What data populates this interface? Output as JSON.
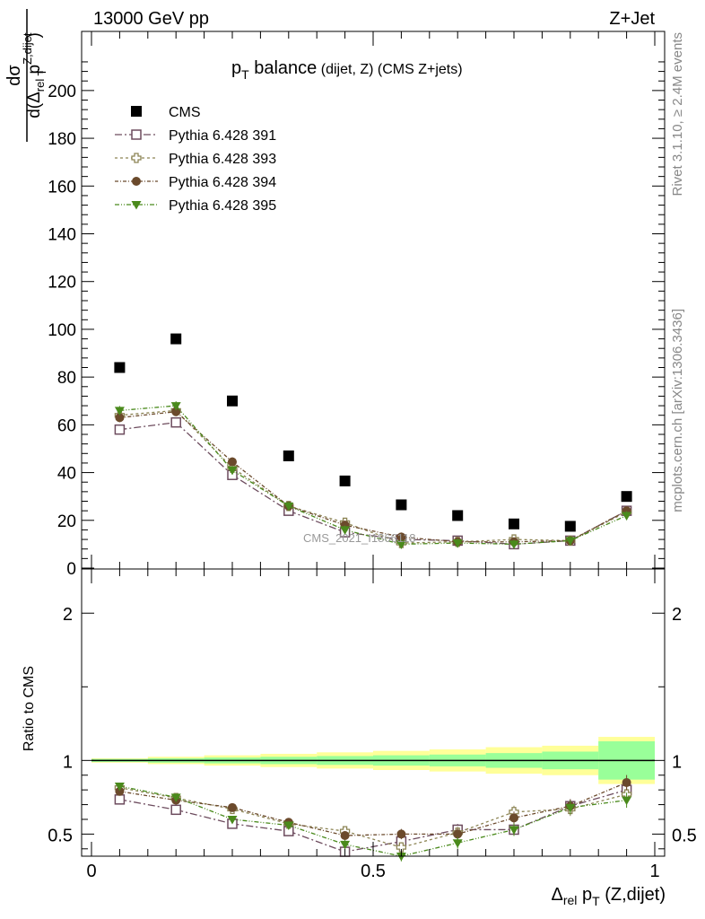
{
  "header": {
    "left": "13000 GeV pp",
    "right": "Z+Jet"
  },
  "side_labels": {
    "rivet": "Rivet 3.1.10, ≥ 2.4M events",
    "mcplots": "mcplots.cern.ch [arXiv:1306.3436]"
  },
  "watermark": "CMS_2021_I1866118",
  "colors": {
    "cms": "#000000",
    "p391": "#6d4c5e",
    "p393": "#8c8454",
    "p394": "#6b4a2c",
    "p395": "#4a8a1c",
    "band_inner": "#99ff99",
    "band_outer": "#ffff99"
  },
  "chart_data": [
    {
      "type": "scatter",
      "title": "p_T balance (dijet, Z) (CMS Z+jets)",
      "title_parts": {
        "main": "p",
        "sub": "T",
        "rest": " balance",
        "small": " (dijet, Z) (CMS Z+jets)"
      },
      "ylabel_parts": {
        "num": "dσ",
        "den_a": "d(Δ",
        "den_sub": "rel",
        "den_b": " p",
        "den_sup": "Z,dijet",
        "den_sub2": "T",
        "den_c": ")"
      },
      "xlim": [
        0,
        1
      ],
      "ylim": [
        0,
        215
      ],
      "y_ticks": [
        0,
        20,
        40,
        60,
        80,
        100,
        120,
        140,
        160,
        180,
        200
      ],
      "y_tick_labels": [
        "0",
        "20",
        "40",
        "60",
        "80",
        "100",
        "120",
        "140",
        "160",
        "180",
        "200"
      ],
      "x": [
        0.05,
        0.15,
        0.25,
        0.35,
        0.45,
        0.55,
        0.65,
        0.75,
        0.85,
        0.95
      ],
      "series": [
        {
          "name": "CMS",
          "key": "cms",
          "marker": "square-filled",
          "values": [
            84,
            96,
            70,
            47,
            36.5,
            26.5,
            22,
            18.5,
            17.5,
            30
          ]
        },
        {
          "name": "Pythia 6.428 391",
          "key": "p391",
          "marker": "square-open",
          "dash": "8,3,2,3",
          "values": [
            58,
            61,
            39,
            24,
            15,
            12,
            11.5,
            10,
            11.5,
            24
          ]
        },
        {
          "name": "Pythia 6.428 393",
          "key": "p393",
          "marker": "cross-open",
          "dash": "3,3",
          "values": [
            64,
            66,
            42,
            26,
            19,
            10.5,
            11,
            12,
            11.5,
            23.5
          ]
        },
        {
          "name": "Pythia 6.428 394",
          "key": "p394",
          "marker": "circle-filled",
          "dash": "4,2,1,2",
          "values": [
            63,
            65.5,
            44.5,
            26,
            18,
            13,
            11,
            11,
            11.5,
            24
          ]
        },
        {
          "name": "Pythia 6.428 395",
          "key": "p395",
          "marker": "triangle-down-filled",
          "dash": "5,2,1,2,1,2",
          "values": [
            66,
            68,
            41,
            26,
            16,
            10,
            10.5,
            10,
            11.5,
            22
          ]
        }
      ]
    },
    {
      "type": "scatter",
      "ylabel": "Ratio to CMS",
      "xlabel": "Δ_rel p_T (Z,dijet)",
      "xlabel_parts": {
        "a": "Δ",
        "sub": "rel",
        "b": " p",
        "sub2": "T",
        "c": " (Z,dijet)"
      },
      "xlim": [
        0,
        1
      ],
      "ylim": [
        0.35,
        2.3
      ],
      "x_ticks": [
        0,
        0.5,
        1
      ],
      "x_tick_labels": [
        "0",
        "0.5",
        "1"
      ],
      "y_ticks": [
        0.5,
        1,
        2
      ],
      "y_tick_labels": [
        "0.5",
        "1",
        "2"
      ],
      "x": [
        0.05,
        0.15,
        0.25,
        0.35,
        0.45,
        0.55,
        0.65,
        0.75,
        0.85,
        0.95
      ],
      "band_inner": [
        0.01,
        0.015,
        0.02,
        0.025,
        0.03,
        0.035,
        0.04,
        0.05,
        0.06,
        0.13
      ],
      "band_outer": [
        0.015,
        0.025,
        0.035,
        0.045,
        0.055,
        0.065,
        0.075,
        0.09,
        0.1,
        0.16
      ],
      "series": [
        {
          "key": "p391",
          "values": [
            0.735,
            0.665,
            0.57,
            0.52,
            0.38,
            0.45,
            0.53,
            0.53,
            0.69,
            0.8
          ]
        },
        {
          "key": "p393",
          "values": [
            0.815,
            0.745,
            0.67,
            0.57,
            0.52,
            0.41,
            0.51,
            0.65,
            0.67,
            0.77
          ]
        },
        {
          "key": "p394",
          "values": [
            0.79,
            0.73,
            0.68,
            0.58,
            0.49,
            0.5,
            0.5,
            0.61,
            0.69,
            0.85
          ]
        },
        {
          "key": "p395",
          "values": [
            0.825,
            0.75,
            0.6,
            0.56,
            0.43,
            0.35,
            0.44,
            0.53,
            0.68,
            0.73
          ]
        }
      ]
    }
  ]
}
